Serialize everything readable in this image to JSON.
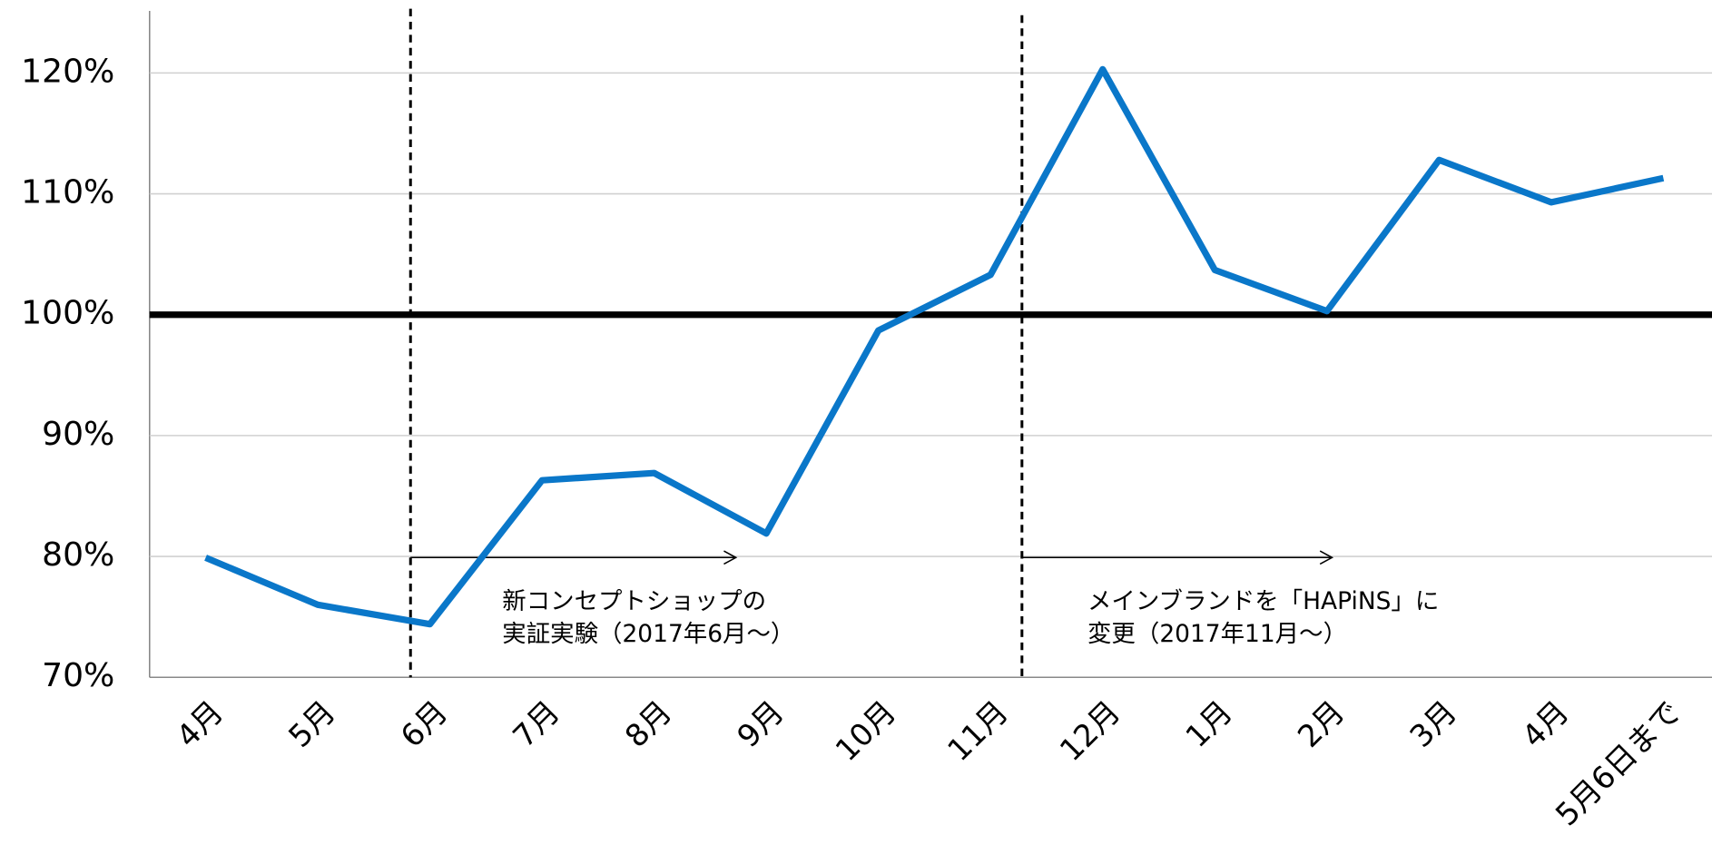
{
  "chart_data": {
    "type": "line",
    "categories": [
      "4月",
      "5月",
      "6月",
      "7月",
      "8月",
      "9月",
      "10月",
      "11月",
      "12月",
      "1月",
      "2月",
      "3月",
      "4月",
      "5月6日まで"
    ],
    "series": [
      {
        "color": "#0a77c9",
        "values": [
          79.9,
          76.0,
          74.4,
          86.3,
          86.9,
          81.9,
          98.7,
          103.3,
          120.3,
          103.7,
          100.3,
          112.8,
          109.3,
          111.3
        ]
      }
    ],
    "ylim": [
      70,
      125
    ],
    "yticks": [
      {
        "value": 70,
        "label": "70%"
      },
      {
        "value": 80,
        "label": "80%"
      },
      {
        "value": 90,
        "label": "90%"
      },
      {
        "value": 100,
        "label": "100%"
      },
      {
        "value": 110,
        "label": "110%"
      },
      {
        "value": 120,
        "label": "120%"
      }
    ],
    "grid": true,
    "reference_line": 100,
    "annotations": [
      {
        "lines": [
          "新コンセプトショップの",
          "実証実験（2017年6月～）"
        ]
      },
      {
        "lines": [
          "メインブランドを「HAPiNS」に",
          "変更（2017年11月～）"
        ]
      }
    ]
  }
}
